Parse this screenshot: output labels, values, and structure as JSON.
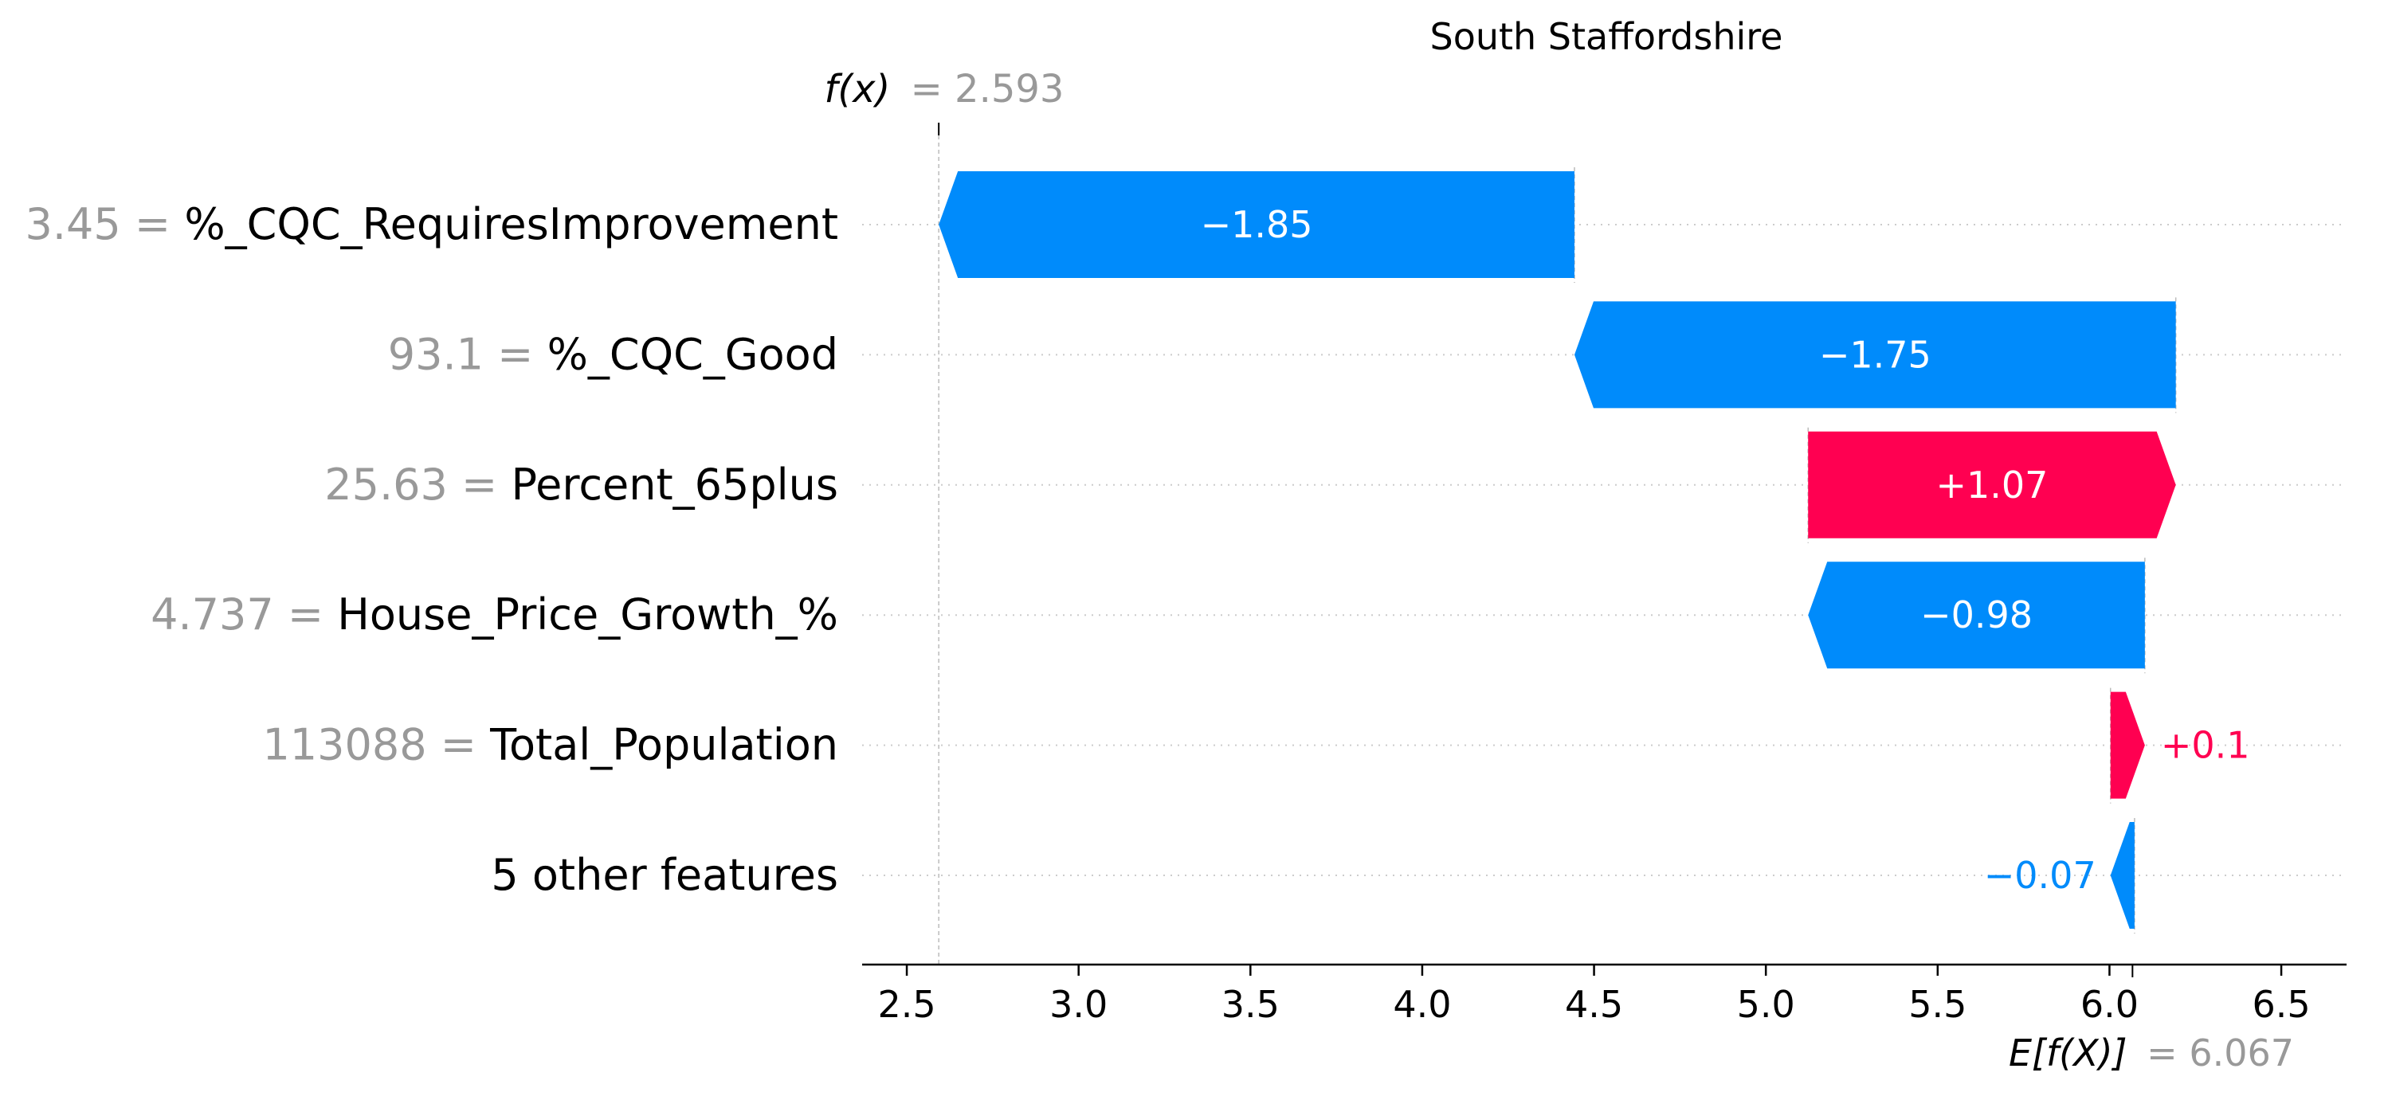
{
  "chart_data": {
    "type": "waterfall",
    "title": "South Staffordshire",
    "fx_symbol": "f(x)",
    "fx_value_text": "= 2.593",
    "fx": 2.593,
    "base_symbol": "E[f(X)]",
    "base_value_text": "= 6.067",
    "base_value": 6.067,
    "xlim": [
      2.37,
      6.69
    ],
    "xticks": [
      2.5,
      3.0,
      3.5,
      4.0,
      4.5,
      5.0,
      5.5,
      6.0,
      6.5
    ],
    "xtick_labels": [
      "2.5",
      "3.0",
      "3.5",
      "4.0",
      "4.5",
      "5.0",
      "5.5",
      "6.0",
      "6.5"
    ],
    "grid": "dotted horizontal per feature row",
    "colors": {
      "positive": "#ff0051",
      "negative": "#008bfb",
      "muted_text": "#999999"
    },
    "features": [
      {
        "value_text": "3.45 =",
        "name": "%_CQC_RequiresImprovement",
        "start": 4.443,
        "end": 2.593,
        "contribution": -1.85,
        "label": "−1.85",
        "label_inside": true
      },
      {
        "value_text": "93.1 =",
        "name": "%_CQC_Good",
        "start": 6.193,
        "end": 4.443,
        "contribution": -1.75,
        "label": "−1.75",
        "label_inside": true
      },
      {
        "value_text": "25.63 =",
        "name": "Percent_65plus",
        "start": 5.123,
        "end": 6.193,
        "contribution": 1.07,
        "label": "+1.07",
        "label_inside": true
      },
      {
        "value_text": "4.737 =",
        "name": "House_Price_Growth_%",
        "start": 6.103,
        "end": 5.123,
        "contribution": -0.98,
        "label": "−0.98",
        "label_inside": true
      },
      {
        "value_text": "113088 =",
        "name": "Total_Population",
        "start": 6.003,
        "end": 6.103,
        "contribution": 0.1,
        "label": "+0.1",
        "label_inside": false
      },
      {
        "value_text": "",
        "name": "5 other features",
        "start": 6.073,
        "end": 6.003,
        "contribution": -0.07,
        "label": "−0.07",
        "label_inside": false
      }
    ]
  }
}
